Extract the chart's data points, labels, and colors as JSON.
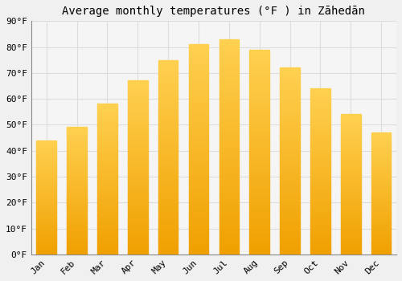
{
  "title": "Average monthly temperatures (°F ) in Zāhedān",
  "categories": [
    "Jan",
    "Feb",
    "Mar",
    "Apr",
    "May",
    "Jun",
    "Jul",
    "Aug",
    "Sep",
    "Oct",
    "Nov",
    "Dec"
  ],
  "values": [
    44,
    49,
    58,
    67,
    75,
    81,
    83,
    79,
    72,
    64,
    54,
    47
  ],
  "ylim": [
    0,
    90
  ],
  "yticks": [
    0,
    10,
    20,
    30,
    40,
    50,
    60,
    70,
    80,
    90
  ],
  "ytick_labels": [
    "0°F",
    "10°F",
    "20°F",
    "30°F",
    "40°F",
    "50°F",
    "60°F",
    "70°F",
    "80°F",
    "90°F"
  ],
  "bar_color_bottom": "#F0A000",
  "bar_color_top": "#FFD040",
  "background_color": "#F0F0F0",
  "plot_bg_color": "#F5F5F5",
  "grid_color": "#DDDDDD",
  "title_fontsize": 10,
  "tick_fontsize": 8,
  "bar_width": 0.65
}
